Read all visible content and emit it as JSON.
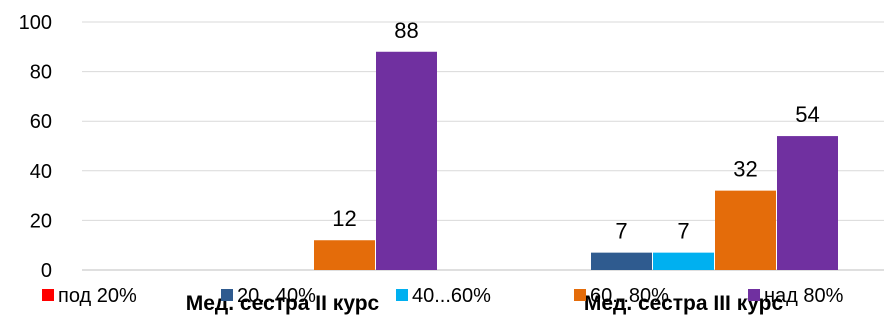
{
  "chart_data": {
    "type": "bar",
    "categories": [
      "Мед. сестра II курс",
      "Мед. сестра III курс"
    ],
    "series": [
      {
        "name": "под 20%",
        "color": "#ff0000",
        "values": [
          0,
          0
        ]
      },
      {
        "name": "20...40%",
        "color": "#2f5b8f",
        "values": [
          0,
          7
        ]
      },
      {
        "name": "40...60%",
        "color": "#00b0f0",
        "values": [
          0,
          7
        ]
      },
      {
        "name": "60...80%",
        "color": "#e46c0a",
        "values": [
          12,
          32
        ]
      },
      {
        "name": "над 80%",
        "color": "#7030a0",
        "values": [
          88,
          54
        ]
      }
    ],
    "data_labels": [
      [
        null,
        null,
        null,
        "12",
        "88"
      ],
      [
        null,
        "7",
        "7",
        "32",
        "54"
      ]
    ],
    "yticks": [
      0,
      20,
      40,
      60,
      80,
      100
    ],
    "ylim": [
      0,
      100
    ],
    "grid": true,
    "legend": "bottom",
    "title": "",
    "xlabel": "",
    "ylabel": ""
  }
}
